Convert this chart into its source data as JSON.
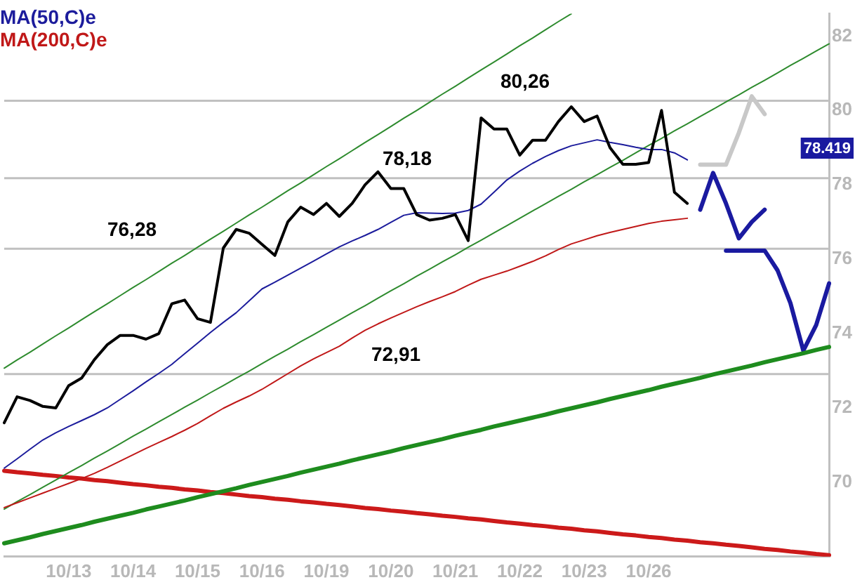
{
  "chart_data": {
    "type": "line",
    "ylim": [
      68,
      82.6
    ],
    "categories": [
      null,
      null,
      null,
      null,
      null,
      "10/13",
      null,
      null,
      null,
      null,
      "10/14",
      null,
      null,
      null,
      null,
      "10/15",
      null,
      null,
      null,
      null,
      "10/16",
      null,
      null,
      null,
      null,
      "10/19",
      null,
      null,
      null,
      null,
      "10/20",
      null,
      null,
      null,
      null,
      "10/21",
      null,
      null,
      null,
      null,
      "10/22",
      null,
      null,
      null,
      null,
      "10/23",
      null,
      null,
      null,
      null,
      "10/26",
      null,
      null,
      null,
      null,
      null,
      null,
      null,
      null,
      null,
      null,
      null,
      null,
      null,
      null
    ],
    "yticks": [
      70,
      72,
      74,
      76,
      78,
      80,
      82
    ],
    "grid": false,
    "legend": "top left",
    "marker": "none",
    "line_style": "solid",
    "series": [
      {
        "color": "#000000",
        "values": [
          71.6,
          72.3,
          72.2,
          72.04,
          72.0,
          72.6,
          72.8,
          73.3,
          73.7,
          73.95,
          73.95,
          73.85,
          74.0,
          74.8,
          74.9,
          74.4,
          74.3,
          76.3,
          76.8,
          76.7,
          76.4,
          76.1,
          77.0,
          77.4,
          77.2,
          77.5,
          77.15,
          77.5,
          78.0,
          78.35,
          77.9,
          77.9,
          77.2,
          77.05,
          77.1,
          77.2,
          76.5,
          79.8,
          79.5,
          79.5,
          78.8,
          79.2,
          79.2,
          79.7,
          80.1,
          79.7,
          79.85,
          79.0,
          78.55,
          78.55,
          78.6,
          80.0,
          77.8,
          77.5,
          null,
          null,
          null,
          null,
          null,
          null,
          null,
          null,
          null,
          null,
          null
        ]
      },
      {
        "name": "MA(50,C)e",
        "color": "#1c1c9c",
        "values": [
          70.38,
          70.63,
          70.89,
          71.14,
          71.33,
          71.5,
          71.66,
          71.82,
          72.0,
          72.23,
          72.46,
          72.7,
          72.93,
          73.17,
          73.46,
          73.74,
          74.03,
          74.3,
          74.56,
          74.88,
          75.2,
          75.38,
          75.57,
          75.76,
          75.95,
          76.14,
          76.33,
          76.49,
          76.64,
          76.8,
          76.99,
          77.18,
          77.25,
          77.24,
          77.23,
          77.24,
          77.31,
          77.48,
          77.8,
          78.13,
          78.37,
          78.58,
          78.76,
          78.92,
          79.05,
          79.13,
          79.21,
          79.14,
          79.08,
          79.01,
          78.95,
          78.95,
          78.86,
          78.67,
          null,
          null,
          null,
          null,
          null,
          null,
          null,
          null,
          null,
          null,
          null
        ]
      },
      {
        "name": "MA(200,C)e",
        "color": "#c01818",
        "values": [
          69.32,
          69.45,
          69.58,
          69.71,
          69.84,
          69.97,
          70.1,
          70.24,
          70.4,
          70.57,
          70.74,
          70.91,
          71.07,
          71.23,
          71.4,
          71.58,
          71.79,
          71.99,
          72.16,
          72.32,
          72.5,
          72.71,
          72.92,
          73.13,
          73.32,
          73.49,
          73.66,
          73.88,
          74.09,
          74.26,
          74.42,
          74.57,
          74.72,
          74.86,
          74.99,
          75.13,
          75.3,
          75.46,
          75.57,
          75.68,
          75.81,
          75.94,
          76.09,
          76.26,
          76.41,
          76.52,
          76.63,
          76.72,
          76.8,
          76.88,
          76.96,
          77.02,
          77.06,
          77.1,
          null,
          null,
          null,
          null,
          null,
          null,
          null,
          null,
          null,
          null,
          null
        ]
      },
      {
        "color": "#2e8b2e",
        "values": [
          73.07,
          73.29,
          73.5,
          73.72,
          73.94,
          74.15,
          74.37,
          74.59,
          74.8,
          75.02,
          75.24,
          75.45,
          75.67,
          75.89,
          76.1,
          76.32,
          76.54,
          76.75,
          76.97,
          77.19,
          77.4,
          77.62,
          77.84,
          78.05,
          78.27,
          78.49,
          78.7,
          78.92,
          79.14,
          79.35,
          79.57,
          79.79,
          80.0,
          80.22,
          80.44,
          80.65,
          80.87,
          81.09,
          81.3,
          81.52,
          81.74,
          81.95,
          82.17,
          82.39,
          82.6,
          null,
          null,
          null,
          null,
          null,
          null,
          null,
          null,
          null,
          null,
          null,
          null,
          null,
          null,
          null,
          null,
          null,
          null,
          null,
          null
        ]
      },
      {
        "color": "#2e8b2e",
        "values": [
          69.28,
          69.48,
          69.67,
          69.87,
          70.06,
          70.26,
          70.45,
          70.65,
          70.84,
          71.04,
          71.24,
          71.43,
          71.63,
          71.82,
          72.02,
          72.21,
          72.41,
          72.6,
          72.8,
          72.99,
          73.19,
          73.39,
          73.58,
          73.78,
          73.97,
          74.17,
          74.36,
          74.56,
          74.75,
          74.95,
          75.15,
          75.34,
          75.54,
          75.73,
          75.93,
          76.12,
          76.32,
          76.51,
          76.71,
          76.9,
          77.1,
          77.3,
          77.49,
          77.69,
          77.88,
          78.08,
          78.27,
          78.47,
          78.66,
          78.86,
          79.06,
          79.25,
          79.45,
          79.64,
          79.84,
          80.03,
          80.23,
          80.42,
          80.62,
          80.81,
          81.01,
          81.21,
          81.4,
          81.6,
          81.79
        ]
      },
      {
        "color": "#1e8c1e",
        "values": [
          68.36,
          68.44,
          68.52,
          68.61,
          68.69,
          68.77,
          68.85,
          68.94,
          69.02,
          69.1,
          69.18,
          69.27,
          69.35,
          69.43,
          69.51,
          69.6,
          69.68,
          69.76,
          69.84,
          69.93,
          70.01,
          70.09,
          70.17,
          70.26,
          70.34,
          70.42,
          70.5,
          70.59,
          70.67,
          70.75,
          70.83,
          70.92,
          71.0,
          71.08,
          71.16,
          71.25,
          71.33,
          71.41,
          71.5,
          71.58,
          71.66,
          71.74,
          71.82,
          71.91,
          71.99,
          72.07,
          72.15,
          72.24,
          72.32,
          72.4,
          72.48,
          72.57,
          72.65,
          72.73,
          72.81,
          72.9,
          72.98,
          73.06,
          73.14,
          73.23,
          73.31,
          73.39,
          73.47,
          73.56,
          73.64
        ]
      },
      {
        "color": "#cc1a1a",
        "values": [
          70.31,
          70.27,
          70.24,
          70.2,
          70.17,
          70.13,
          70.1,
          70.06,
          70.03,
          69.99,
          69.95,
          69.92,
          69.88,
          69.85,
          69.81,
          69.78,
          69.74,
          69.71,
          69.67,
          69.63,
          69.6,
          69.56,
          69.53,
          69.49,
          69.46,
          69.42,
          69.39,
          69.35,
          69.31,
          69.28,
          69.24,
          69.21,
          69.17,
          69.14,
          69.1,
          69.07,
          69.03,
          69.0,
          68.96,
          68.92,
          68.89,
          68.85,
          68.82,
          68.78,
          68.75,
          68.71,
          68.68,
          68.64,
          68.6,
          68.57,
          68.53,
          68.5,
          68.46,
          68.43,
          68.39,
          68.36,
          68.32,
          68.29,
          68.25,
          68.21,
          68.18,
          68.14,
          68.11,
          68.07,
          68.04
        ]
      },
      {
        "color": "#c8c8c8",
        "values": [
          null,
          null,
          null,
          null,
          null,
          null,
          null,
          null,
          null,
          null,
          null,
          null,
          null,
          null,
          null,
          null,
          null,
          null,
          null,
          null,
          null,
          null,
          null,
          null,
          null,
          null,
          null,
          null,
          null,
          null,
          null,
          null,
          null,
          null,
          null,
          null,
          null,
          null,
          null,
          null,
          null,
          null,
          null,
          null,
          null,
          null,
          null,
          null,
          null,
          null,
          null,
          null,
          null,
          null,
          78.54,
          78.54,
          78.54,
          79.4,
          80.38,
          79.9,
          null,
          null,
          null,
          null,
          null
        ]
      },
      {
        "color": "#1a1aa0",
        "values": [
          null,
          null,
          null,
          null,
          null,
          null,
          null,
          null,
          null,
          null,
          null,
          null,
          null,
          null,
          null,
          null,
          null,
          null,
          null,
          null,
          null,
          null,
          null,
          null,
          null,
          null,
          null,
          null,
          null,
          null,
          null,
          null,
          null,
          null,
          null,
          null,
          null,
          null,
          null,
          null,
          null,
          null,
          null,
          null,
          null,
          null,
          null,
          null,
          null,
          null,
          null,
          null,
          null,
          null,
          77.33,
          78.32,
          77.5,
          76.56,
          77.0,
          77.33,
          null,
          null,
          null,
          null,
          null
        ]
      },
      {
        "color": "#1a1aa0",
        "values": [
          null,
          null,
          null,
          null,
          null,
          null,
          null,
          null,
          null,
          null,
          null,
          null,
          null,
          null,
          null,
          null,
          null,
          null,
          null,
          null,
          null,
          null,
          null,
          null,
          null,
          null,
          null,
          null,
          null,
          null,
          null,
          null,
          null,
          null,
          null,
          null,
          null,
          null,
          null,
          null,
          null,
          null,
          null,
          null,
          null,
          null,
          null,
          null,
          null,
          null,
          null,
          null,
          null,
          null,
          null,
          null,
          76.23,
          76.23,
          76.23,
          76.23,
          75.7,
          74.82,
          73.54,
          74.23,
          75.35
        ]
      }
    ],
    "ref_lines": [
      {
        "axis": "y",
        "value": 80.26,
        "label": "80,26",
        "color": "#c0c0c0"
      },
      {
        "axis": "y",
        "value": 78.18,
        "label": "78,18",
        "color": "#c0c0c0"
      },
      {
        "axis": "y",
        "value": 76.28,
        "label": "76,28",
        "color": "#c0c0c0"
      },
      {
        "axis": "y",
        "value": 72.91,
        "label": "72,91",
        "color": "#c0c0c0"
      }
    ],
    "annotations": [
      "78.419"
    ]
  }
}
